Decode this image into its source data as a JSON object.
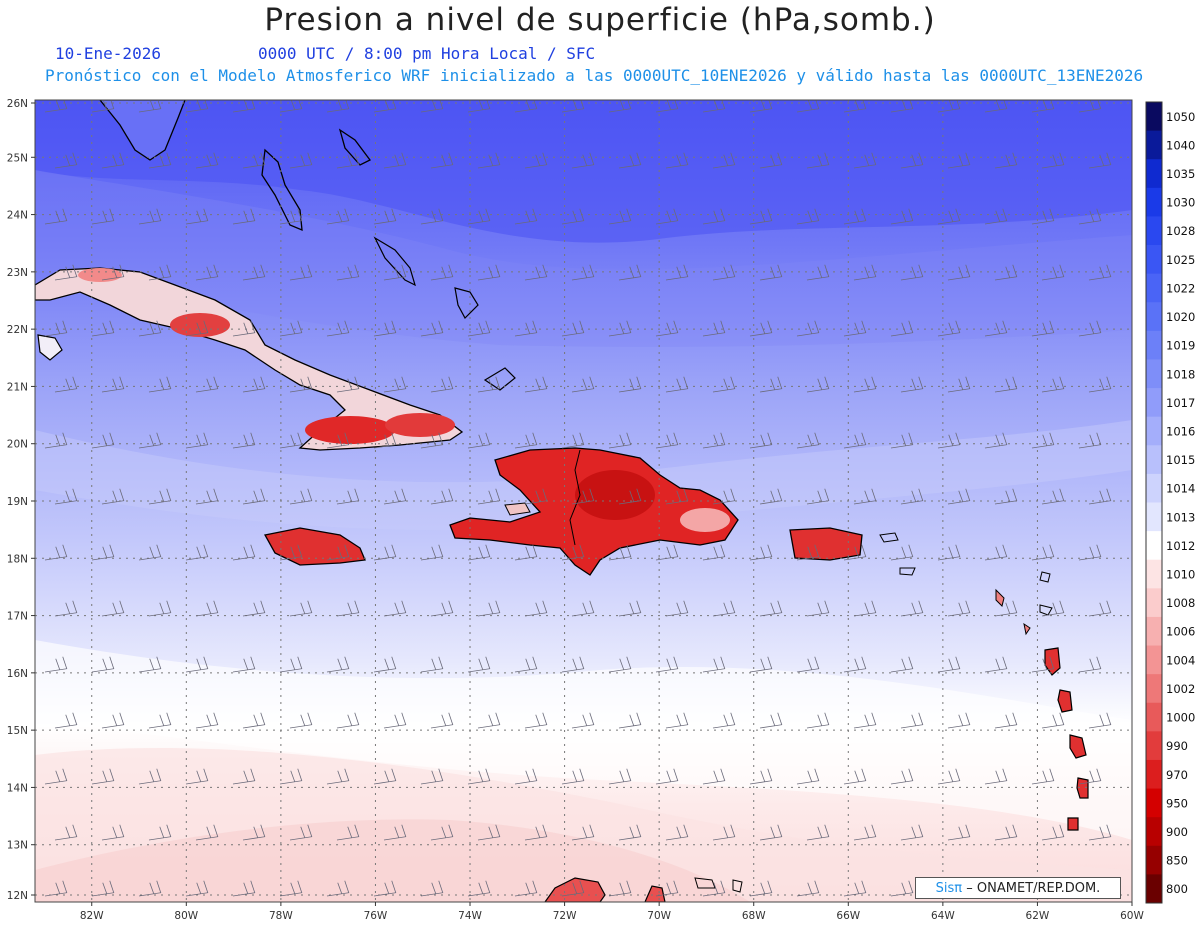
{
  "title": "Presion a nivel de superficie (hPa,somb.)",
  "date": "10-Ene-2026",
  "time_info": "0000 UTC / 8:00 pm Hora Local / SFC",
  "forecast_info": "Pronóstico con el Modelo Atmosferico WRF inicializado a las 0000UTC_10ENE2026 y válido hasta las  0000UTC_13ENE2026",
  "credit": {
    "logo": "Sisπ",
    "text": "– ONAMET/REP.DOM."
  },
  "lat_labels": [
    "26N",
    "25N",
    "24N",
    "23N",
    "22N",
    "21N",
    "20N",
    "19N",
    "18N",
    "17N",
    "16N",
    "15N",
    "14N",
    "13N",
    "12N"
  ],
  "lon_labels": [
    "82W",
    "80W",
    "78W",
    "76W",
    "74W",
    "72W",
    "70W",
    "68W",
    "66W",
    "64W",
    "62W",
    "60W"
  ],
  "colorbar": {
    "levels": [
      "1050",
      "1040",
      "1035",
      "1030",
      "1028",
      "1025",
      "1022",
      "1020",
      "1019",
      "1018",
      "1017",
      "1016",
      "1015",
      "1014",
      "1013",
      "1012",
      "1010",
      "1008",
      "1006",
      "1004",
      "1002",
      "1000",
      "990",
      "970",
      "950",
      "900",
      "850",
      "800"
    ],
    "colors": [
      "#0a0a60",
      "#0a1a9a",
      "#0f2ad0",
      "#1a3ae8",
      "#2a48f0",
      "#3a56f4",
      "#4a64f6",
      "#5a72f7",
      "#6c80f8",
      "#7e8ef9",
      "#909cfa",
      "#a4aefb",
      "#b8c0fc",
      "#cdd3fd",
      "#e2e6fe",
      "#ffffff",
      "#fde4e4",
      "#fbcccc",
      "#f7b0b0",
      "#f39494",
      "#ee7878",
      "#e85a5a",
      "#e23c3c",
      "#dc1e1e",
      "#d40000",
      "#b80000",
      "#960000",
      "#6a0000"
    ]
  }
}
